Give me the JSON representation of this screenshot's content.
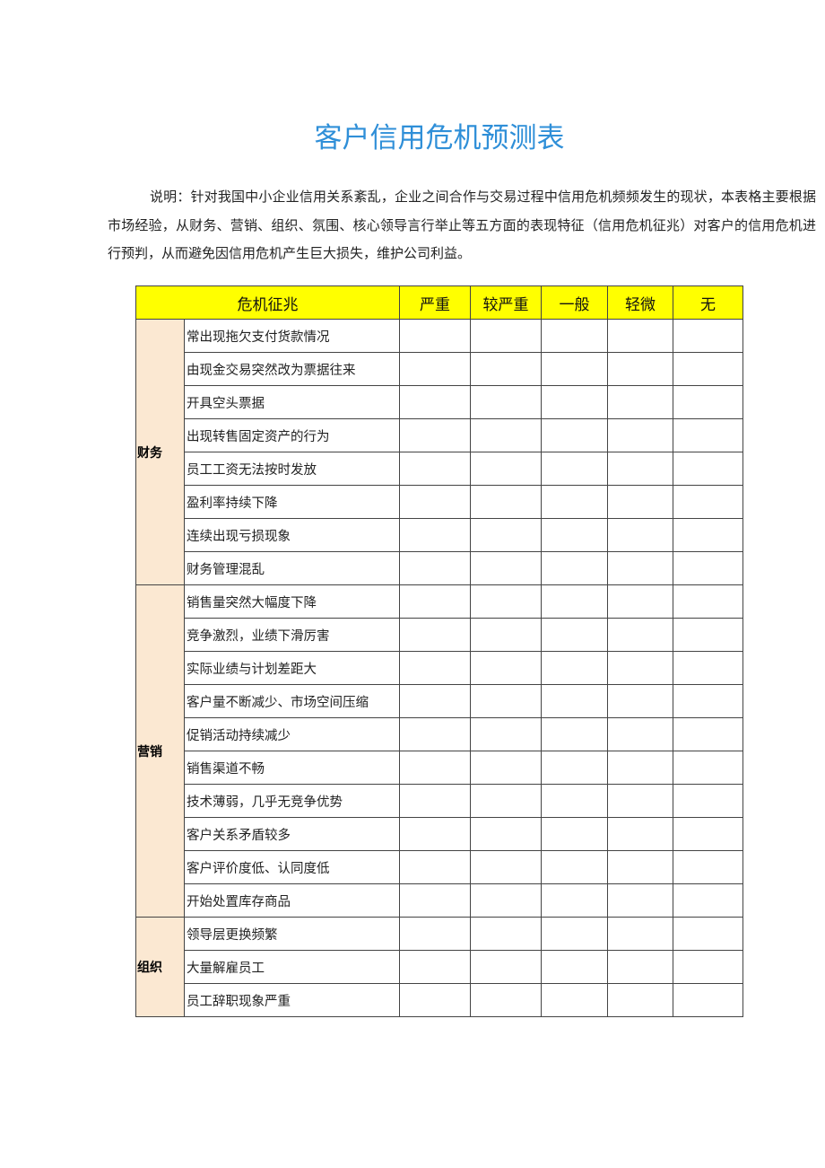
{
  "title": "客户信用危机预测表",
  "description": "说明：针对我国中小企业信用关系紊乱，企业之间合作与交易过程中信用危机频频发生的现状，本表格主要根据市场经验，从财务、营销、组织、氛围、核心领导言行举止等五方面的表现特征（信用危机征兆）对客户的信用危机进行预判，从而避免因信用危机产生巨大损失，维护公司利益。",
  "table": {
    "headers": [
      "危机征兆",
      "严重",
      "较严重",
      "一般",
      "轻微",
      "无"
    ],
    "groups": [
      {
        "category": "财务",
        "items": [
          "常出现拖欠支付货款情况",
          "由现金交易突然改为票据往来",
          "开具空头票据",
          "出现转售固定资产的行为",
          "员工工资无法按时发放",
          "盈利率持续下降",
          "连续出现亏损现象",
          "财务管理混乱"
        ]
      },
      {
        "category": "营销",
        "items": [
          "销售量突然大幅度下降",
          "竞争激烈，业绩下滑厉害",
          "实际业绩与计划差距大",
          "客户量不断减少、市场空间压缩",
          "促销活动持续减少",
          "销售渠道不畅",
          "技术薄弱，几乎无竞争优势",
          "客户关系矛盾较多",
          "客户评价度低、认同度低",
          "开始处置库存商品"
        ]
      },
      {
        "category": "组织",
        "items": [
          "领导层更换频繁",
          "大量解雇员工",
          "员工辞职现象严重"
        ]
      }
    ]
  }
}
